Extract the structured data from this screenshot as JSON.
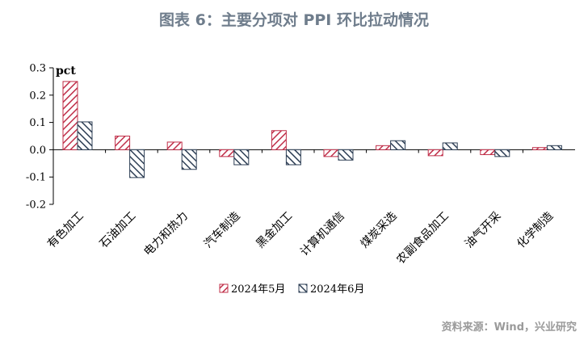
{
  "chart_data": {
    "type": "bar",
    "title": "图表 6：主要分项对 PPI 环比拉动情况",
    "unit_label": "pct",
    "categories": [
      "有色加工",
      "石油加工",
      "电力和热力",
      "汽车制造",
      "黑金加工",
      "计算机通信",
      "煤炭采选",
      "农副食品加工",
      "油气开采",
      "化学制造"
    ],
    "series": [
      {
        "name": "2024年5月",
        "color": "#c0304a",
        "pattern": "hatch-red",
        "values": [
          0.25,
          0.05,
          0.028,
          -0.025,
          0.07,
          -0.025,
          0.015,
          -0.022,
          -0.018,
          0.008
        ]
      },
      {
        "name": "2024年6月",
        "color": "#2e3f55",
        "pattern": "hatch-navy",
        "values": [
          0.102,
          -0.102,
          -0.072,
          -0.055,
          -0.055,
          -0.038,
          0.033,
          0.025,
          -0.025,
          0.015
        ]
      }
    ],
    "ylim": [
      -0.2,
      0.3
    ],
    "yticks": [
      "0.3",
      "0.2",
      "0.1",
      "0.0",
      "-0.1",
      "-0.2"
    ],
    "ytick_values": [
      0.3,
      0.2,
      0.1,
      0.0,
      -0.1,
      -0.2
    ],
    "legend_position": "bottom",
    "grid": false,
    "source": "资料来源：Wind，兴业研究"
  }
}
